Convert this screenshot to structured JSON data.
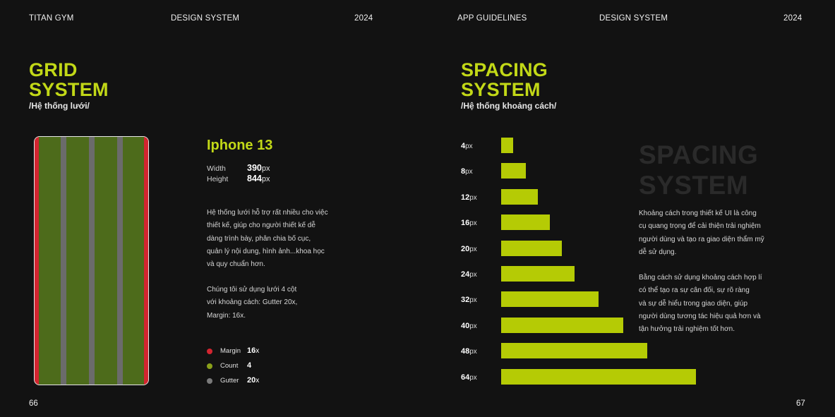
{
  "left_page": {
    "header": {
      "brand": "TITAN GYM",
      "section": "DESIGN SYSTEM",
      "year": "2024"
    },
    "title_line1": "GRID",
    "title_line2": "SYSTEM",
    "subtitle": "/Hệ thống lưới/",
    "device": {
      "name": "Iphone 13",
      "width_label": "Width",
      "width_value": "390",
      "width_unit": "px",
      "height_label": "Height",
      "height_value": "844",
      "height_unit": "px"
    },
    "paragraph1": [
      "Hệ thống lưới hỗ trợ rất nhiều cho việc",
      "thiết kế, giúp cho người thiết kế dễ",
      "dàng trình bày, phân chia bố cục,",
      "quản lý nội dung, hình ảnh...khoa học",
      "và quy chuẩn hơn."
    ],
    "paragraph2": [
      "Chúng tôi sử dụng lưới 4 cột",
      "với khoảng cách: Gutter 20x,",
      "Margin: 16x."
    ],
    "legend": [
      {
        "label": "Margin",
        "value": "16",
        "unit": "x",
        "color": "#d32530"
      },
      {
        "label": "Count",
        "value": "4",
        "unit": "",
        "color": "#8aa01a"
      },
      {
        "label": "Gutter",
        "value": "20",
        "unit": "x",
        "color": "#7a7a7a"
      }
    ],
    "page_number": "66"
  },
  "right_page": {
    "header": {
      "brand": "APP GUIDELINES",
      "section": "DESIGN SYSTEM",
      "year": "2024"
    },
    "title_line1": "SPACING",
    "title_line2": "SYSTEM",
    "subtitle": "/Hệ thống khoảng cách/",
    "ghost_line1": "SPACING",
    "ghost_line2": "SYSTEM",
    "spacing_scale": [
      {
        "value": "4",
        "unit": "px"
      },
      {
        "value": "8",
        "unit": "px"
      },
      {
        "value": "12",
        "unit": "px"
      },
      {
        "value": "16",
        "unit": "px"
      },
      {
        "value": "20",
        "unit": "px"
      },
      {
        "value": "24",
        "unit": "px"
      },
      {
        "value": "32",
        "unit": "px"
      },
      {
        "value": "40",
        "unit": "px"
      },
      {
        "value": "48",
        "unit": "px"
      },
      {
        "value": "64",
        "unit": "px"
      }
    ],
    "paragraph1": [
      "Khoảng cách trong thiết kế UI là công",
      "cụ quang trọng để cải thiện trải nghiệm",
      "người dùng và tạo ra giao diện thẩm mỹ",
      "dễ sử dụng."
    ],
    "paragraph2": [
      "Bằng cách sử dụng khoảng cách hợp lí",
      "có thể tạo ra sự cân đối, sự rõ ràng",
      "và sự dễ hiểu trong giao diện, giúp",
      "người dùng tương tác hiệu quả hơn và",
      "tận hưởng trải nghiệm tốt hơn."
    ],
    "accent_color": "#b5cb05",
    "page_number": "67"
  }
}
